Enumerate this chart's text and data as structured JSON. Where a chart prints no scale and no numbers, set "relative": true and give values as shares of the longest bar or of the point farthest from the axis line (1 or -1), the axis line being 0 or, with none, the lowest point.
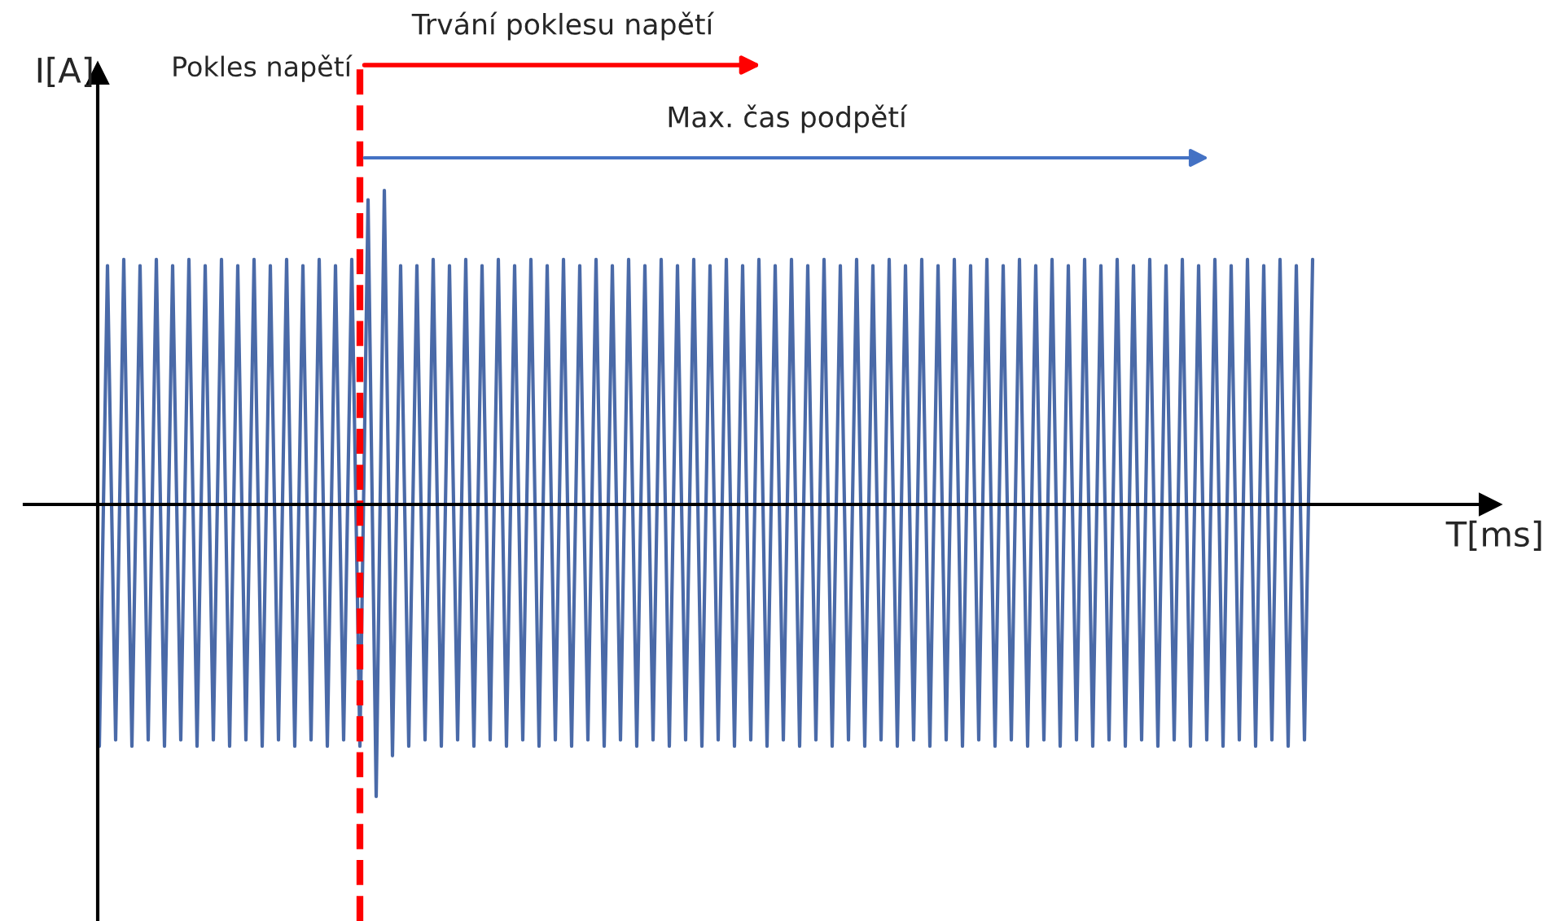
{
  "chart_data": {
    "type": "line",
    "relative": true,
    "xlabel": "T[ms]",
    "ylabel": "I[A]",
    "categories": [
      null,
      null,
      null,
      null,
      null,
      null,
      null,
      null,
      null,
      null,
      null,
      null,
      null,
      null,
      null,
      null,
      null,
      null,
      null,
      null,
      null,
      null,
      null,
      null,
      null,
      null,
      null,
      null,
      null,
      null,
      null,
      null,
      null,
      null,
      null,
      null,
      null,
      null,
      null,
      null,
      null,
      null,
      null,
      null,
      null,
      null,
      null,
      null,
      null,
      null,
      null,
      null,
      null,
      null,
      null,
      null,
      null,
      null,
      null,
      null,
      null,
      null,
      null,
      null,
      null,
      null,
      null,
      null,
      null,
      null,
      null,
      null,
      null,
      null,
      null,
      null,
      null,
      null,
      null,
      null,
      null,
      null,
      null,
      null,
      null,
      null,
      null,
      null,
      null,
      null,
      null,
      null,
      null,
      null,
      null,
      null,
      null,
      null,
      null,
      null,
      null,
      null,
      null,
      null,
      null,
      null,
      null,
      null,
      null,
      null,
      null,
      null,
      null,
      null,
      null,
      null,
      null,
      null,
      null,
      null,
      null,
      null,
      null,
      null,
      null,
      null,
      null,
      null,
      null,
      null,
      null,
      null,
      null,
      null,
      null,
      null,
      null,
      null,
      null,
      null,
      null,
      null,
      null,
      null,
      null,
      null,
      null,
      null,
      null,
      null
    ],
    "series": [
      {
        "color": "#4a6aa8",
        "values": [
          -0.77,
          0.76,
          -0.75,
          0.78,
          -0.77,
          0.76,
          -0.75,
          0.78,
          -0.77,
          0.76,
          -0.75,
          0.78,
          -0.77,
          0.76,
          -0.75,
          0.78,
          -0.77,
          0.76,
          -0.75,
          0.78,
          -0.77,
          0.76,
          -0.75,
          0.78,
          -0.77,
          0.76,
          -0.75,
          0.78,
          -0.77,
          0.76,
          -0.75,
          0.78,
          -0.77,
          0.97,
          -0.93,
          1,
          -0.8,
          0.76,
          -0.77,
          0.76,
          -0.75,
          0.78,
          -0.77,
          0.76,
          -0.75,
          0.78,
          -0.77,
          0.76,
          -0.75,
          0.78,
          -0.77,
          0.76,
          -0.75,
          0.78,
          -0.77,
          0.76,
          -0.75,
          0.78,
          -0.77,
          0.76,
          -0.75,
          0.78,
          -0.77,
          0.76,
          -0.75,
          0.78,
          -0.77,
          0.76,
          -0.75,
          0.78,
          -0.77,
          0.76,
          -0.75,
          0.78,
          -0.77,
          0.76,
          -0.75,
          0.78,
          -0.77,
          0.76,
          -0.75,
          0.78,
          -0.77,
          0.76,
          -0.75,
          0.78,
          -0.77,
          0.76,
          -0.75,
          0.78,
          -0.77,
          0.76,
          -0.75,
          0.78,
          -0.77,
          0.76,
          -0.75,
          0.78,
          -0.77,
          0.76,
          -0.75,
          0.78,
          -0.77,
          0.76,
          -0.75,
          0.78,
          -0.77,
          0.76,
          -0.75,
          0.78,
          -0.77,
          0.76,
          -0.75,
          0.78,
          -0.77,
          0.76,
          -0.75,
          0.78,
          -0.77,
          0.76,
          -0.75,
          0.78,
          -0.77,
          0.76,
          -0.75,
          0.78,
          -0.77,
          0.76,
          -0.75,
          0.78,
          -0.77,
          0.76,
          -0.75,
          0.78,
          -0.77,
          0.76,
          -0.75,
          0.78,
          -0.77,
          0.76,
          -0.75,
          0.78,
          -0.77,
          0.76,
          -0.75,
          0.78,
          -0.77,
          0.76,
          -0.75,
          0.78
        ]
      }
    ],
    "annotations": [
      "Pokles napětí",
      "Trvání poklesu napětí",
      "Max. čas podpětí"
    ],
    "legend": false,
    "marker": "none",
    "line_style": "solid"
  }
}
